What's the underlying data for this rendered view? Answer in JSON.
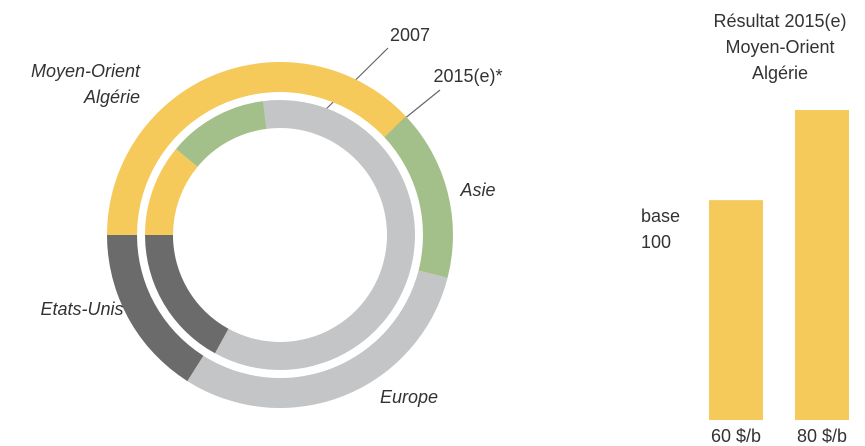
{
  "chart_data": [
    {
      "type": "donut",
      "categories": [
        [
          "Moyen-Orient",
          "Algérie"
        ],
        [
          "Asie"
        ],
        [
          "Europe"
        ],
        [
          "Etats-Unis"
        ]
      ],
      "colors": [
        "#f5c95a",
        "#a4c08a",
        "#c4c5c7",
        "#6b6b6b"
      ],
      "series": [
        {
          "name": "2007",
          "values": [
            11,
            12,
            60,
            17
          ]
        },
        {
          "name": "2015(e)*",
          "values": [
            38,
            16,
            30,
            16
          ]
        }
      ]
    },
    {
      "type": "bar",
      "title": [
        "Résultat 2015(e)",
        "Moyen-Orient",
        "Algérie"
      ],
      "annotation": [
        "base",
        "100"
      ],
      "categories": [
        "60 $/b",
        "80 $/b"
      ],
      "values": [
        100,
        141
      ],
      "color": "#f5c95a",
      "ylim": [
        0,
        141
      ]
    }
  ]
}
